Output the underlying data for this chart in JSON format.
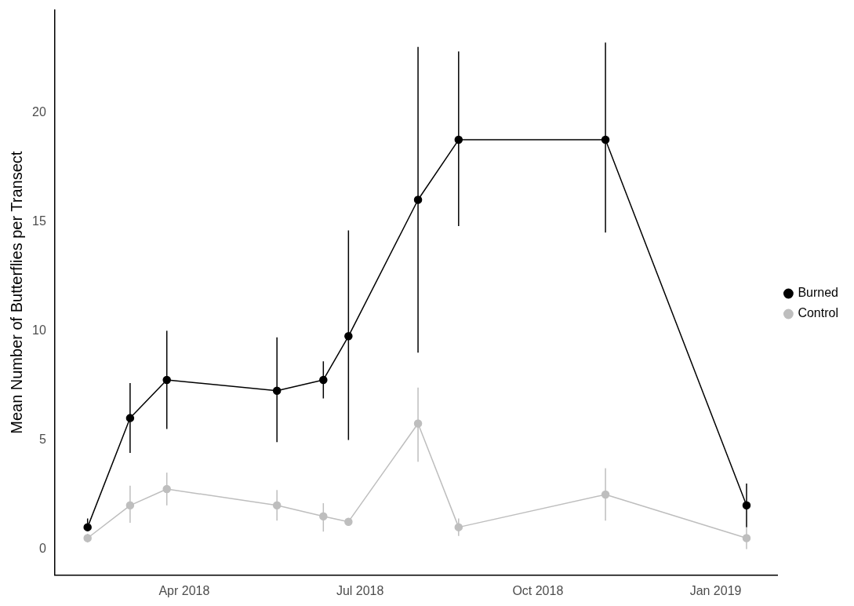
{
  "chart_data": {
    "type": "line",
    "ylabel": "Mean Number of Butterflies per Transect",
    "x": [
      "2018-02-10",
      "2018-03-04",
      "2018-03-23",
      "2018-05-19",
      "2018-06-12",
      "2018-06-25",
      "2018-07-31",
      "2018-08-21",
      "2018-11-05",
      "2019-01-17"
    ],
    "series": [
      {
        "name": "Burned",
        "color": "#000000",
        "values": [
          1,
          6,
          7.75,
          7.25,
          7.75,
          9.75,
          16,
          18.75,
          18.75,
          2
        ],
        "errors": [
          [
            1,
            1.4
          ],
          [
            4.4,
            7.6
          ],
          [
            5.5,
            10
          ],
          [
            4.9,
            9.7
          ],
          [
            6.9,
            8.6
          ],
          [
            5,
            14.6
          ],
          [
            9,
            23
          ],
          [
            14.8,
            22.8
          ],
          [
            14.5,
            23.2
          ],
          [
            1,
            3
          ]
        ]
      },
      {
        "name": "Control",
        "color": "#bebebe",
        "values": [
          0.5,
          2,
          2.75,
          2,
          1.5,
          1.25,
          5.75,
          1,
          2.5,
          0.5
        ],
        "errors": [
          [
            0.3,
            0.7
          ],
          [
            1.2,
            2.9
          ],
          [
            2,
            3.5
          ],
          [
            1.3,
            2.7
          ],
          [
            0.8,
            2.1
          ],
          [
            1.1,
            1.4
          ],
          [
            4,
            7.4
          ],
          [
            0.6,
            1.4
          ],
          [
            1.3,
            3.7
          ],
          [
            0,
            1
          ]
        ]
      }
    ],
    "xlim": [
      "2018-01-24",
      "2019-02-02"
    ],
    "xticks": [
      {
        "value": "2018-04-01",
        "label": "Apr 2018"
      },
      {
        "value": "2018-07-01",
        "label": "Jul 2018"
      },
      {
        "value": "2018-10-01",
        "label": "Oct 2018"
      },
      {
        "value": "2019-01-01",
        "label": "Jan 2019"
      }
    ],
    "ylim": [
      -1.2,
      24.7
    ],
    "yticks": [
      0,
      5,
      10,
      15,
      20
    ],
    "grid": false,
    "legend": "right",
    "marker": "circle",
    "line_style": "solid"
  }
}
